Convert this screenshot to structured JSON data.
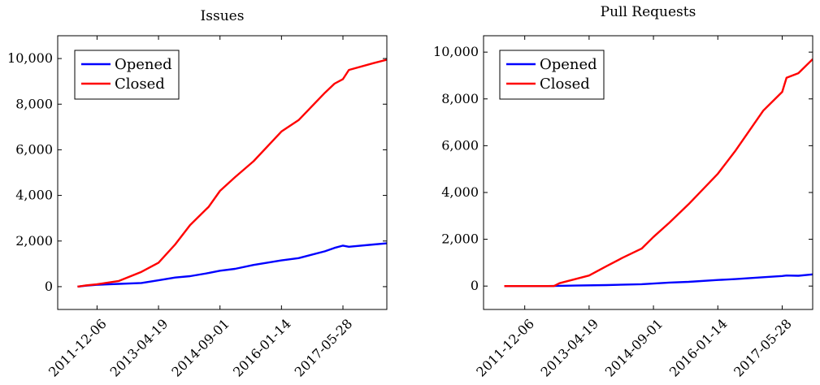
{
  "chart_data": [
    {
      "type": "line",
      "title": "Issues",
      "xlabel": "",
      "ylabel": "",
      "x_ticks": [
        "2011-12-06",
        "2013-04-19",
        "2014-09-01",
        "2016-01-14",
        "2017-05-28"
      ],
      "xlim": [
        "2011-01-20",
        "2018-05-20"
      ],
      "ylim": [
        -1000,
        11000
      ],
      "y_ticks": [
        0,
        2000,
        4000,
        6000,
        8000,
        10000
      ],
      "y_tick_labels": [
        "0",
        "2,000",
        "4,000",
        "6,000",
        "8,000",
        "10,000"
      ],
      "legend_position": "top-left",
      "grid": false,
      "series": [
        {
          "name": "Opened",
          "color": "#0000ff",
          "points": [
            [
              "2011-06-30",
              0
            ],
            [
              "2011-09-01",
              40
            ],
            [
              "2011-12-01",
              80
            ],
            [
              "2012-06-01",
              120
            ],
            [
              "2012-12-01",
              160
            ],
            [
              "2013-04-19",
              280
            ],
            [
              "2013-09-01",
              400
            ],
            [
              "2014-01-01",
              460
            ],
            [
              "2014-06-01",
              600
            ],
            [
              "2014-09-01",
              700
            ],
            [
              "2015-01-01",
              780
            ],
            [
              "2015-06-01",
              950
            ],
            [
              "2016-01-14",
              1150
            ],
            [
              "2016-06-01",
              1250
            ],
            [
              "2017-01-01",
              1550
            ],
            [
              "2017-03-20",
              1700
            ],
            [
              "2017-05-28",
              1800
            ],
            [
              "2017-07-15",
              1750
            ],
            [
              "2018-02-01",
              1850
            ],
            [
              "2018-05-20",
              1900
            ]
          ]
        },
        {
          "name": "Closed",
          "color": "#ff0000",
          "points": [
            [
              "2011-06-30",
              0
            ],
            [
              "2011-09-01",
              50
            ],
            [
              "2011-12-01",
              100
            ],
            [
              "2012-06-01",
              250
            ],
            [
              "2012-12-01",
              650
            ],
            [
              "2013-04-19",
              1050
            ],
            [
              "2013-09-01",
              1850
            ],
            [
              "2014-01-01",
              2700
            ],
            [
              "2014-06-01",
              3500
            ],
            [
              "2014-09-01",
              4200
            ],
            [
              "2015-01-01",
              4800
            ],
            [
              "2015-06-01",
              5500
            ],
            [
              "2016-01-14",
              6800
            ],
            [
              "2016-06-01",
              7300
            ],
            [
              "2017-01-01",
              8500
            ],
            [
              "2017-03-20",
              8900
            ],
            [
              "2017-05-28",
              9100
            ],
            [
              "2017-07-15",
              9500
            ],
            [
              "2018-02-01",
              9800
            ],
            [
              "2018-05-20",
              9950
            ]
          ]
        }
      ]
    },
    {
      "type": "line",
      "title": "Pull Requests",
      "xlabel": "",
      "ylabel": "",
      "x_ticks": [
        "2011-12-06",
        "2013-04-19",
        "2014-09-01",
        "2016-01-14",
        "2017-05-28"
      ],
      "xlim": [
        "2011-01-20",
        "2018-01-20"
      ],
      "ylim": [
        -1000,
        10700
      ],
      "y_ticks": [
        0,
        2000,
        4000,
        6000,
        8000,
        10000
      ],
      "y_tick_labels": [
        "0",
        "2,000",
        "4,000",
        "6,000",
        "8,000",
        "10,000"
      ],
      "legend_position": "top-left",
      "grid": false,
      "series": [
        {
          "name": "Opened",
          "color": "#0000ff",
          "points": [
            [
              "2011-06-30",
              0
            ],
            [
              "2012-06-01",
              0
            ],
            [
              "2013-01-01",
              20
            ],
            [
              "2013-09-01",
              40
            ],
            [
              "2014-06-01",
              80
            ],
            [
              "2015-01-01",
              150
            ],
            [
              "2015-06-01",
              180
            ],
            [
              "2016-01-14",
              260
            ],
            [
              "2016-06-01",
              300
            ],
            [
              "2017-01-01",
              380
            ],
            [
              "2017-05-28",
              430
            ],
            [
              "2017-07-01",
              450
            ],
            [
              "2017-10-01",
              440
            ],
            [
              "2018-01-20",
              500
            ]
          ]
        },
        {
          "name": "Closed",
          "color": "#ff0000",
          "points": [
            [
              "2011-06-30",
              0
            ],
            [
              "2012-07-20",
              0
            ],
            [
              "2012-09-01",
              120
            ],
            [
              "2013-04-19",
              450
            ],
            [
              "2013-09-01",
              850
            ],
            [
              "2014-01-01",
              1200
            ],
            [
              "2014-06-01",
              1600
            ],
            [
              "2014-09-01",
              2100
            ],
            [
              "2015-01-01",
              2700
            ],
            [
              "2015-06-01",
              3500
            ],
            [
              "2016-01-14",
              4800
            ],
            [
              "2016-06-01",
              5800
            ],
            [
              "2017-01-01",
              7500
            ],
            [
              "2017-05-28",
              8300
            ],
            [
              "2017-07-01",
              8900
            ],
            [
              "2017-10-01",
              9100
            ],
            [
              "2018-01-20",
              9700
            ]
          ]
        }
      ]
    }
  ]
}
